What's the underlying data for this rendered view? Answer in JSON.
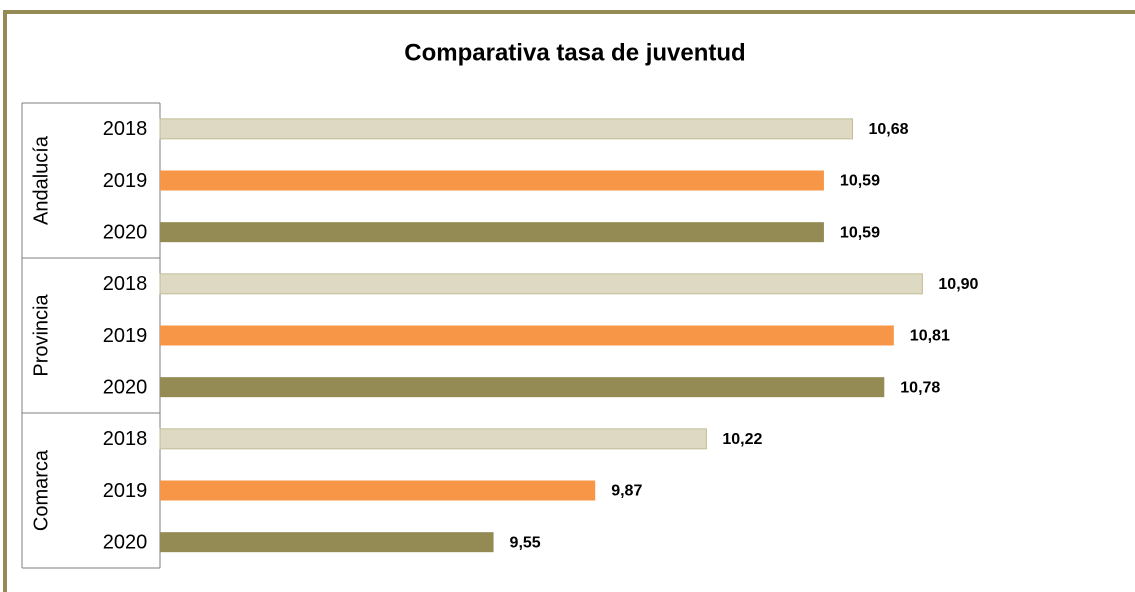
{
  "chart_data": {
    "type": "bar",
    "orientation": "horizontal",
    "title": "Comparativa tasa de juventud",
    "groups": [
      "Andalucía",
      "Provincia",
      "Comarca"
    ],
    "series": [
      {
        "name": "2018",
        "color": "#ddd9c3",
        "values": [
          10.68,
          10.9,
          10.22
        ],
        "value_labels": [
          "10,68",
          "10,90",
          "10,22"
        ]
      },
      {
        "name": "2019",
        "color": "#f79646",
        "values": [
          10.59,
          10.81,
          9.87
        ],
        "value_labels": [
          "10,59",
          "10,81",
          "9,87"
        ]
      },
      {
        "name": "2020",
        "color": "#948a54",
        "values": [
          10.59,
          10.78,
          9.55
        ],
        "value_labels": [
          "10,59",
          "10,78",
          "9,55"
        ]
      }
    ],
    "xlim": [
      8.5,
      11.5
    ]
  }
}
